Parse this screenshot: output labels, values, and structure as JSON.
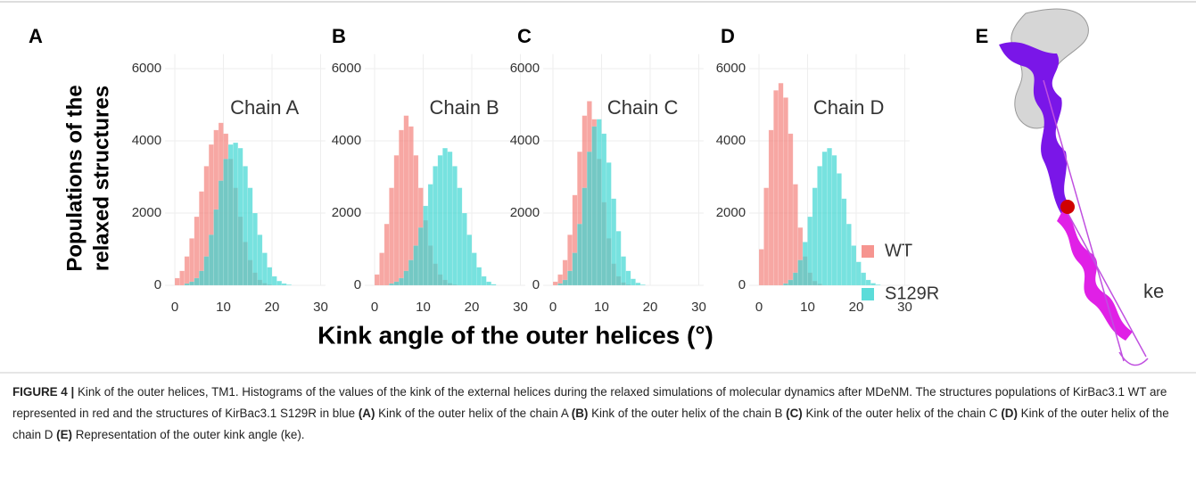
{
  "panel_labels": [
    "A",
    "B",
    "C",
    "D",
    "E"
  ],
  "y_axis_label": [
    "Populations of the",
    "relaxed structures"
  ],
  "x_axis_label": "Kink angle of the outer helices (°)",
  "legend": [
    {
      "name": "WT",
      "color": "#f4837d"
    },
    {
      "name": "S129R",
      "color": "#3ed6d2"
    }
  ],
  "structure_label": "ke",
  "chart_data": [
    {
      "type": "histogram",
      "title": "Chain A",
      "bins": [
        0,
        1,
        2,
        3,
        4,
        5,
        6,
        7,
        8,
        9,
        10,
        11,
        12,
        13,
        14,
        15,
        16,
        17,
        18,
        19,
        20,
        21,
        22,
        23,
        24,
        25
      ],
      "series": [
        {
          "values": [
            200,
            400,
            800,
            1300,
            1900,
            2600,
            3300,
            3900,
            4300,
            4500,
            4200,
            3500,
            2700,
            1900,
            1200,
            700,
            350,
            150,
            60,
            20,
            0,
            0,
            0,
            0,
            0
          ]
        },
        {
          "values": [
            0,
            0,
            50,
            100,
            200,
            400,
            800,
            1400,
            2100,
            2900,
            3500,
            3900,
            3950,
            3800,
            3300,
            2700,
            2000,
            1400,
            900,
            500,
            250,
            120,
            50,
            20,
            0
          ]
        }
      ],
      "xlim": [
        -2,
        31
      ],
      "ylim": [
        0,
        6400
      ],
      "xticks": [
        0,
        10,
        20,
        30
      ],
      "yticks": [
        0,
        2000,
        4000,
        6000
      ],
      "grid": true
    },
    {
      "type": "histogram",
      "title": "Chain B",
      "bins": [
        0,
        1,
        2,
        3,
        4,
        5,
        6,
        7,
        8,
        9,
        10,
        11,
        12,
        13,
        14,
        15,
        16,
        17,
        18,
        19,
        20,
        21,
        22,
        23,
        24,
        25
      ],
      "series": [
        {
          "values": [
            300,
            900,
            1700,
            2700,
            3600,
            4300,
            4700,
            4400,
            3600,
            2700,
            1800,
            1100,
            600,
            300,
            150,
            60,
            20,
            0,
            0,
            0,
            0,
            0,
            0,
            0,
            0
          ]
        },
        {
          "values": [
            0,
            0,
            0,
            50,
            100,
            200,
            400,
            700,
            1100,
            1600,
            2200,
            2800,
            3300,
            3600,
            3800,
            3700,
            3300,
            2700,
            2000,
            1400,
            900,
            500,
            250,
            100,
            30
          ]
        }
      ],
      "xlim": [
        -2,
        31
      ],
      "ylim": [
        0,
        6400
      ],
      "xticks": [
        0,
        10,
        20,
        30
      ],
      "yticks": [
        0,
        2000,
        4000,
        6000
      ],
      "grid": true
    },
    {
      "type": "histogram",
      "title": "Chain C",
      "bins": [
        0,
        1,
        2,
        3,
        4,
        5,
        6,
        7,
        8,
        9,
        10,
        11,
        12,
        13,
        14,
        15,
        16,
        17,
        18,
        19,
        20,
        21,
        22,
        23,
        24,
        25
      ],
      "series": [
        {
          "values": [
            100,
            300,
            700,
            1400,
            2500,
            3700,
            4700,
            5100,
            4600,
            3500,
            2300,
            1300,
            600,
            250,
            80,
            20,
            0,
            0,
            0,
            0,
            0,
            0,
            0,
            0,
            0
          ]
        },
        {
          "values": [
            0,
            50,
            150,
            400,
            900,
            1700,
            2700,
            3700,
            4400,
            4600,
            4200,
            3400,
            2400,
            1500,
            800,
            400,
            180,
            70,
            20,
            0,
            0,
            0,
            0,
            0,
            0
          ]
        }
      ],
      "xlim": [
        -2,
        31
      ],
      "ylim": [
        0,
        6400
      ],
      "xticks": [
        0,
        10,
        20,
        30
      ],
      "yticks": [
        0,
        2000,
        4000,
        6000
      ],
      "grid": true
    },
    {
      "type": "histogram",
      "title": "Chain D",
      "bins": [
        0,
        1,
        2,
        3,
        4,
        5,
        6,
        7,
        8,
        9,
        10,
        11,
        12,
        13,
        14,
        15,
        16,
        17,
        18,
        19,
        20,
        21,
        22,
        23,
        24,
        25
      ],
      "series": [
        {
          "values": [
            1000,
            2700,
            4300,
            5400,
            5600,
            5200,
            4200,
            2800,
            1600,
            800,
            350,
            120,
            40,
            0,
            0,
            0,
            0,
            0,
            0,
            0,
            0,
            0,
            0,
            0,
            0
          ]
        },
        {
          "values": [
            0,
            0,
            0,
            0,
            0,
            50,
            150,
            350,
            700,
            1200,
            1900,
            2700,
            3300,
            3700,
            3800,
            3600,
            3100,
            2400,
            1700,
            1100,
            650,
            350,
            150,
            60,
            20
          ]
        }
      ],
      "xlim": [
        -2,
        31
      ],
      "ylim": [
        0,
        6400
      ],
      "xticks": [
        0,
        10,
        20,
        30
      ],
      "yticks": [
        0,
        2000,
        4000,
        6000
      ],
      "grid": true
    }
  ],
  "caption": [
    {
      "text": "FIGURE 4 |",
      "bold": true
    },
    {
      "text": " Kink of the outer helices, TM1. Histograms of the values of the kink of the external helices during the relaxed simulations of molecular dynamics after MDeNM. The structures populations of KirBac3.1 WT are represented in red and the structures of KirBac3.1 S129R in blue ",
      "bold": false
    },
    {
      "text": "(A)",
      "bold": true
    },
    {
      "text": " Kink of the outer helix of the chain A ",
      "bold": false
    },
    {
      "text": "(B)",
      "bold": true
    },
    {
      "text": " Kink of the outer helix of the chain B ",
      "bold": false
    },
    {
      "text": "(C)",
      "bold": true
    },
    {
      "text": " Kink of the outer helix of the chain C ",
      "bold": false
    },
    {
      "text": "(D)",
      "bold": true
    },
    {
      "text": " Kink of the outer helix of the chain D ",
      "bold": false
    },
    {
      "text": "(E)",
      "bold": true
    },
    {
      "text": " Representation of the outer kink angle (ke).",
      "bold": false
    }
  ]
}
